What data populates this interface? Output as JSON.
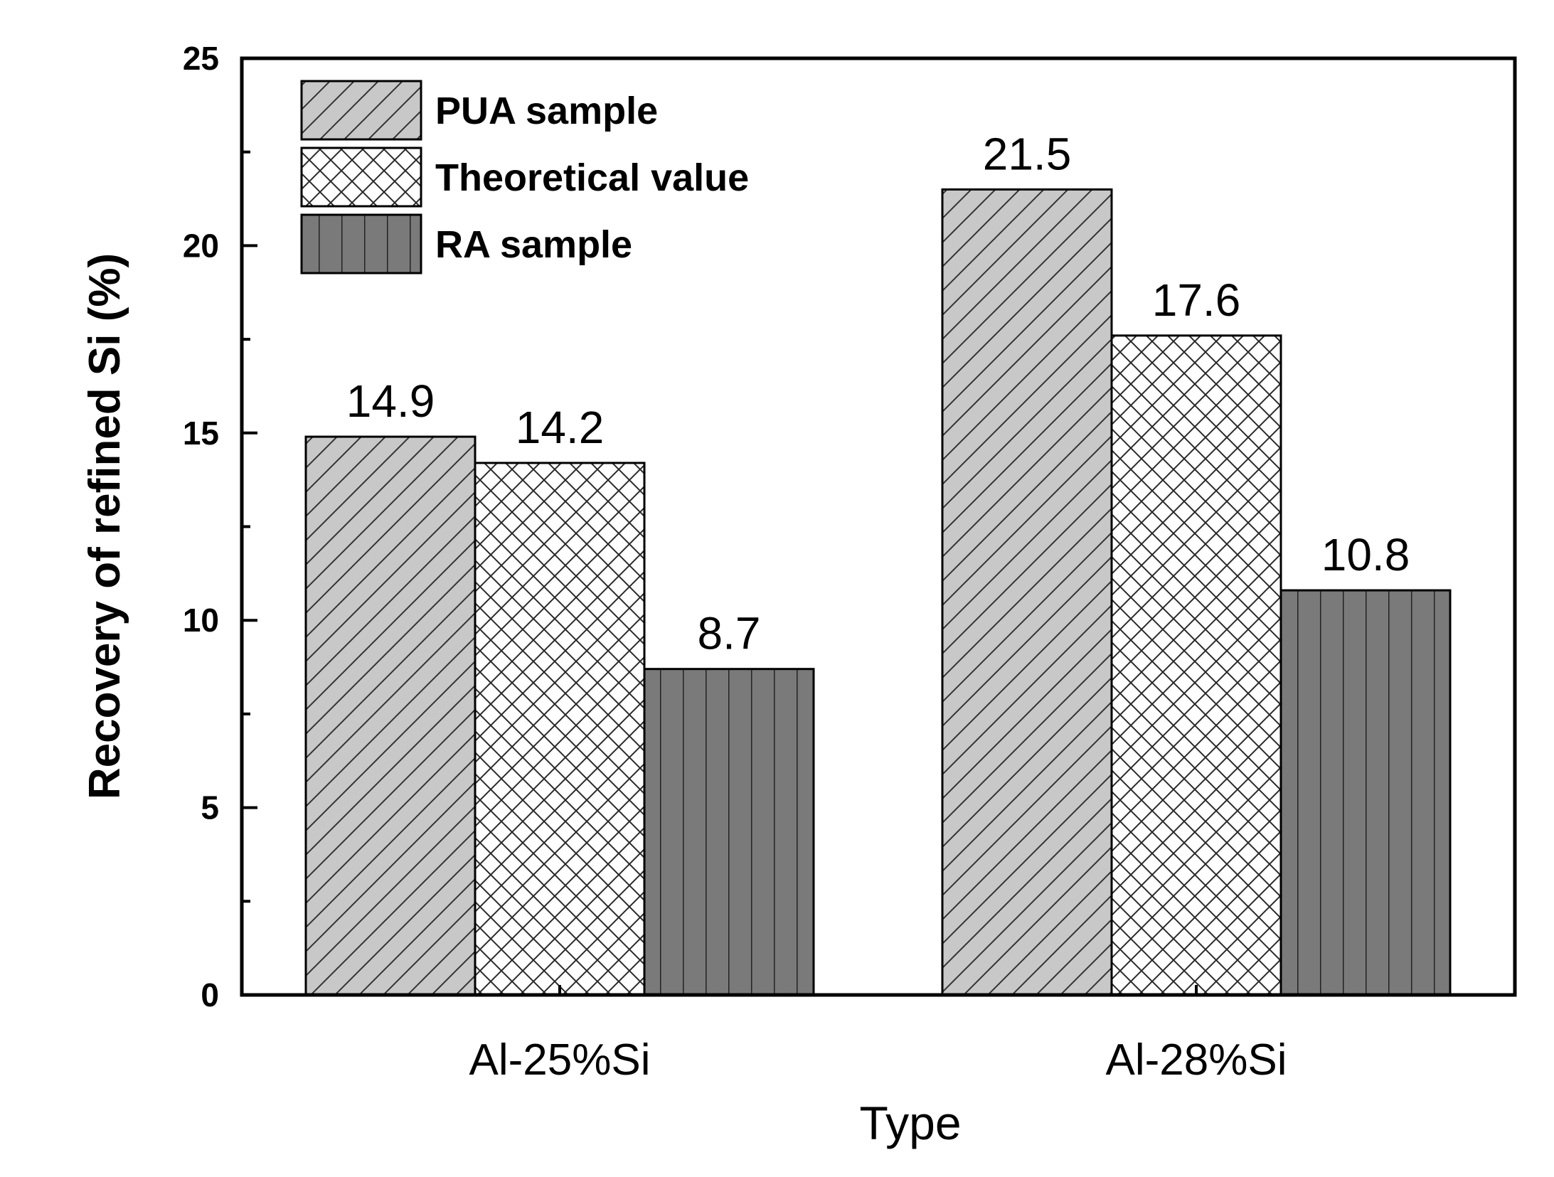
{
  "chart_data": {
    "type": "bar",
    "categories": [
      "Al-25%Si",
      "Al-28%Si"
    ],
    "series": [
      {
        "name": "PUA sample",
        "values": [
          14.9,
          21.5
        ],
        "pattern": "diagonal-hatch",
        "fill": "#c8c8c8"
      },
      {
        "name": "Theoretical value",
        "values": [
          14.2,
          17.6
        ],
        "pattern": "crosshatch",
        "fill": "#ffffff"
      },
      {
        "name": "RA sample",
        "values": [
          8.7,
          10.8
        ],
        "pattern": "vertical-stripes",
        "fill": "#7a7a7a"
      }
    ],
    "data_labels": [
      [
        "14.9",
        "21.5"
      ],
      [
        "14.2",
        "17.6"
      ],
      [
        "8.7",
        "10.8"
      ]
    ],
    "xlabel": "Type",
    "ylabel": "Recovery of refined Si (%)",
    "ylim": [
      0,
      25
    ],
    "yticks": [
      0,
      5,
      10,
      15,
      20,
      25
    ],
    "yticks_minor": [
      2.5,
      7.5,
      12.5,
      17.5,
      22.5
    ],
    "legend_position": "top-left",
    "grid": false
  }
}
